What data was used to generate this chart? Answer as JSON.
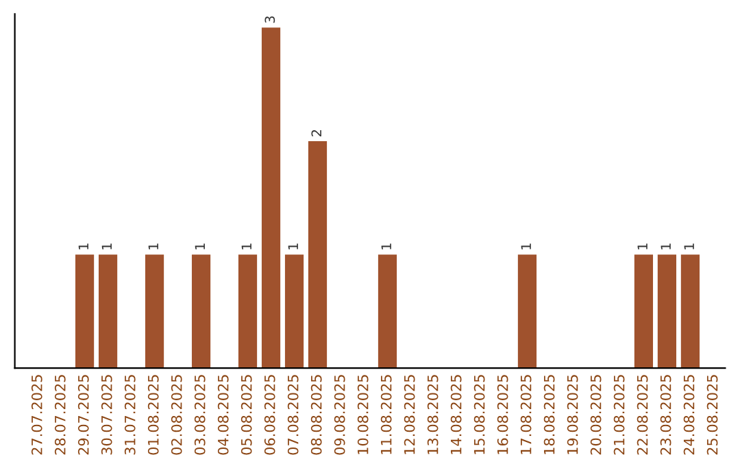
{
  "chart_data": {
    "type": "bar",
    "categories": [
      "27.07.2025",
      "28.07.2025",
      "29.07.2025",
      "30.07.2025",
      "31.07.2025",
      "01.08.2025",
      "02.08.2025",
      "03.08.2025",
      "04.08.2025",
      "05.08.2025",
      "06.08.2025",
      "07.08.2025",
      "08.08.2025",
      "09.08.2025",
      "10.08.2025",
      "11.08.2025",
      "12.08.2025",
      "13.08.2025",
      "14.08.2025",
      "15.08.2025",
      "16.08.2025",
      "17.08.2025",
      "18.08.2025",
      "19.08.2025",
      "20.08.2025",
      "21.08.2025",
      "22.08.2025",
      "23.08.2025",
      "24.08.2025",
      "25.08.2025"
    ],
    "values": [
      0,
      0,
      1,
      1,
      0,
      1,
      0,
      1,
      0,
      1,
      3,
      1,
      2,
      0,
      0,
      1,
      0,
      0,
      0,
      0,
      0,
      1,
      0,
      0,
      0,
      0,
      1,
      1,
      1,
      0
    ],
    "value_labels": [
      null,
      null,
      "1",
      "1",
      null,
      "1",
      null,
      "1",
      null,
      "1",
      "3",
      "1",
      "2",
      null,
      null,
      "1",
      null,
      null,
      null,
      null,
      null,
      "1",
      null,
      null,
      null,
      null,
      "1",
      "1",
      "1",
      null
    ],
    "color": "#a0522d",
    "grid": false,
    "legend": false
  }
}
